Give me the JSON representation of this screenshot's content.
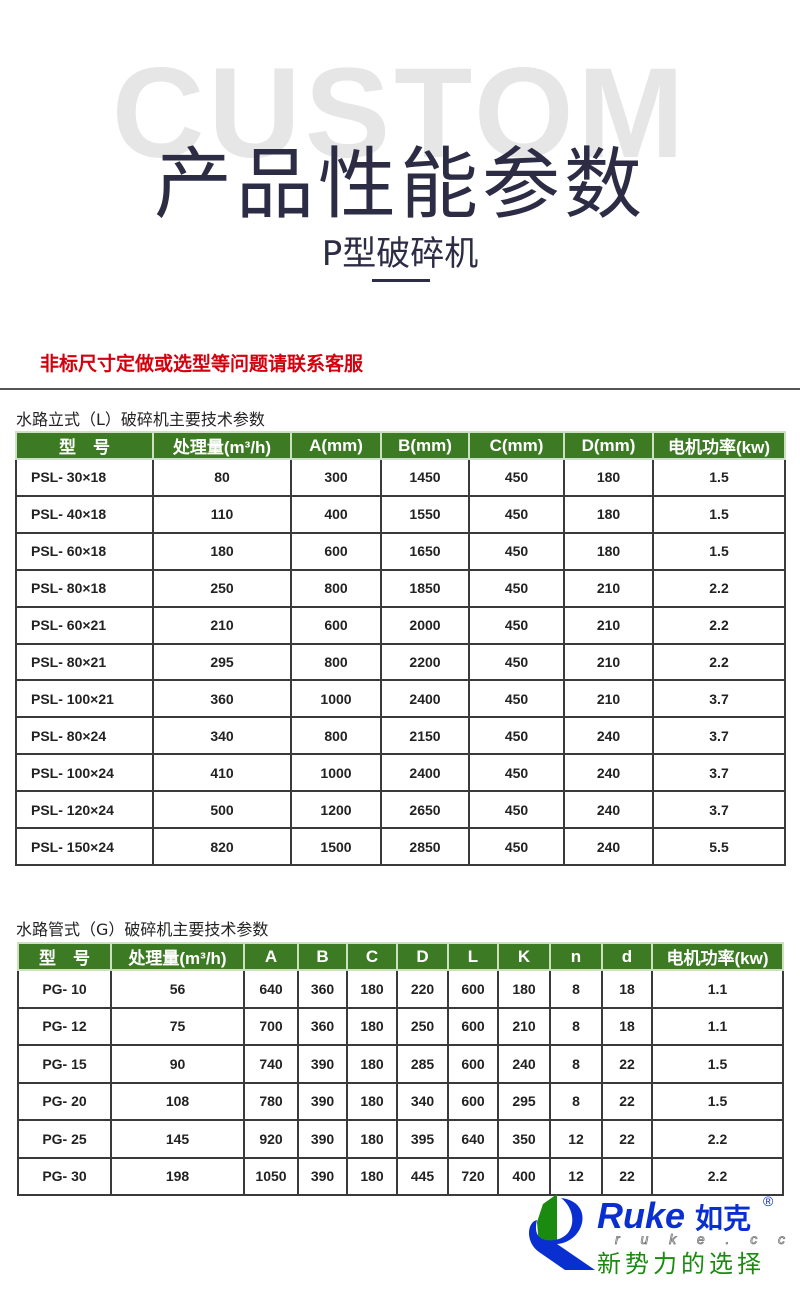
{
  "header": {
    "watermark": "CUSTOM",
    "title": "产品性能参数",
    "subtitle": "P型破碎机"
  },
  "notice": "非标尺寸定做或选型等问题请联系客服",
  "table1": {
    "caption": "水路立式（L）破碎机主要技术参数",
    "headers": [
      "型　号",
      "处理量(m³/h)",
      "A(mm)",
      "B(mm)",
      "C(mm)",
      "D(mm)",
      "电机功率(kw)"
    ],
    "rows": [
      [
        "PSL- 30×18",
        "80",
        "300",
        "1450",
        "450",
        "180",
        "1.5"
      ],
      [
        "PSL- 40×18",
        "110",
        "400",
        "1550",
        "450",
        "180",
        "1.5"
      ],
      [
        "PSL- 60×18",
        "180",
        "600",
        "1650",
        "450",
        "180",
        "1.5"
      ],
      [
        "PSL- 80×18",
        "250",
        "800",
        "1850",
        "450",
        "210",
        "2.2"
      ],
      [
        "PSL- 60×21",
        "210",
        "600",
        "2000",
        "450",
        "210",
        "2.2"
      ],
      [
        "PSL- 80×21",
        "295",
        "800",
        "2200",
        "450",
        "210",
        "2.2"
      ],
      [
        "PSL- 100×21",
        "360",
        "1000",
        "2400",
        "450",
        "210",
        "3.7"
      ],
      [
        "PSL- 80×24",
        "340",
        "800",
        "2150",
        "450",
        "240",
        "3.7"
      ],
      [
        "PSL- 100×24",
        "410",
        "1000",
        "2400",
        "450",
        "240",
        "3.7"
      ],
      [
        "PSL- 120×24",
        "500",
        "1200",
        "2650",
        "450",
        "240",
        "3.7"
      ],
      [
        "PSL- 150×24",
        "820",
        "1500",
        "2850",
        "450",
        "240",
        "5.5"
      ]
    ]
  },
  "table2": {
    "caption": "水路管式（G）破碎机主要技术参数",
    "headers": [
      "型　号",
      "处理量(m³/h)",
      "A",
      "B",
      "C",
      "D",
      "L",
      "K",
      "n",
      "d",
      "电机功率(kw)"
    ],
    "rows": [
      [
        "PG- 10",
        "56",
        "640",
        "360",
        "180",
        "220",
        "600",
        "180",
        "8",
        "18",
        "1.1"
      ],
      [
        "PG- 12",
        "75",
        "700",
        "360",
        "180",
        "250",
        "600",
        "210",
        "8",
        "18",
        "1.1"
      ],
      [
        "PG- 15",
        "90",
        "740",
        "390",
        "180",
        "285",
        "600",
        "240",
        "8",
        "22",
        "1.5"
      ],
      [
        "PG- 20",
        "108",
        "780",
        "390",
        "180",
        "340",
        "600",
        "295",
        "8",
        "22",
        "1.5"
      ],
      [
        "PG- 25",
        "145",
        "920",
        "390",
        "180",
        "395",
        "640",
        "350",
        "12",
        "22",
        "2.2"
      ],
      [
        "PG- 30",
        "198",
        "1050",
        "390",
        "180",
        "445",
        "720",
        "400",
        "12",
        "22",
        "2.2"
      ]
    ]
  },
  "logo": {
    "brand": "Ruke如克",
    "domain": "ruke.cc",
    "slogan": "新势力的选择",
    "registered": "®"
  },
  "colors": {
    "header_green": "#3d7a24",
    "title": "#2d2c45",
    "notice_red": "#d4000d",
    "logo_blue": "#0a2fd0",
    "logo_green": "#1a8a10"
  }
}
